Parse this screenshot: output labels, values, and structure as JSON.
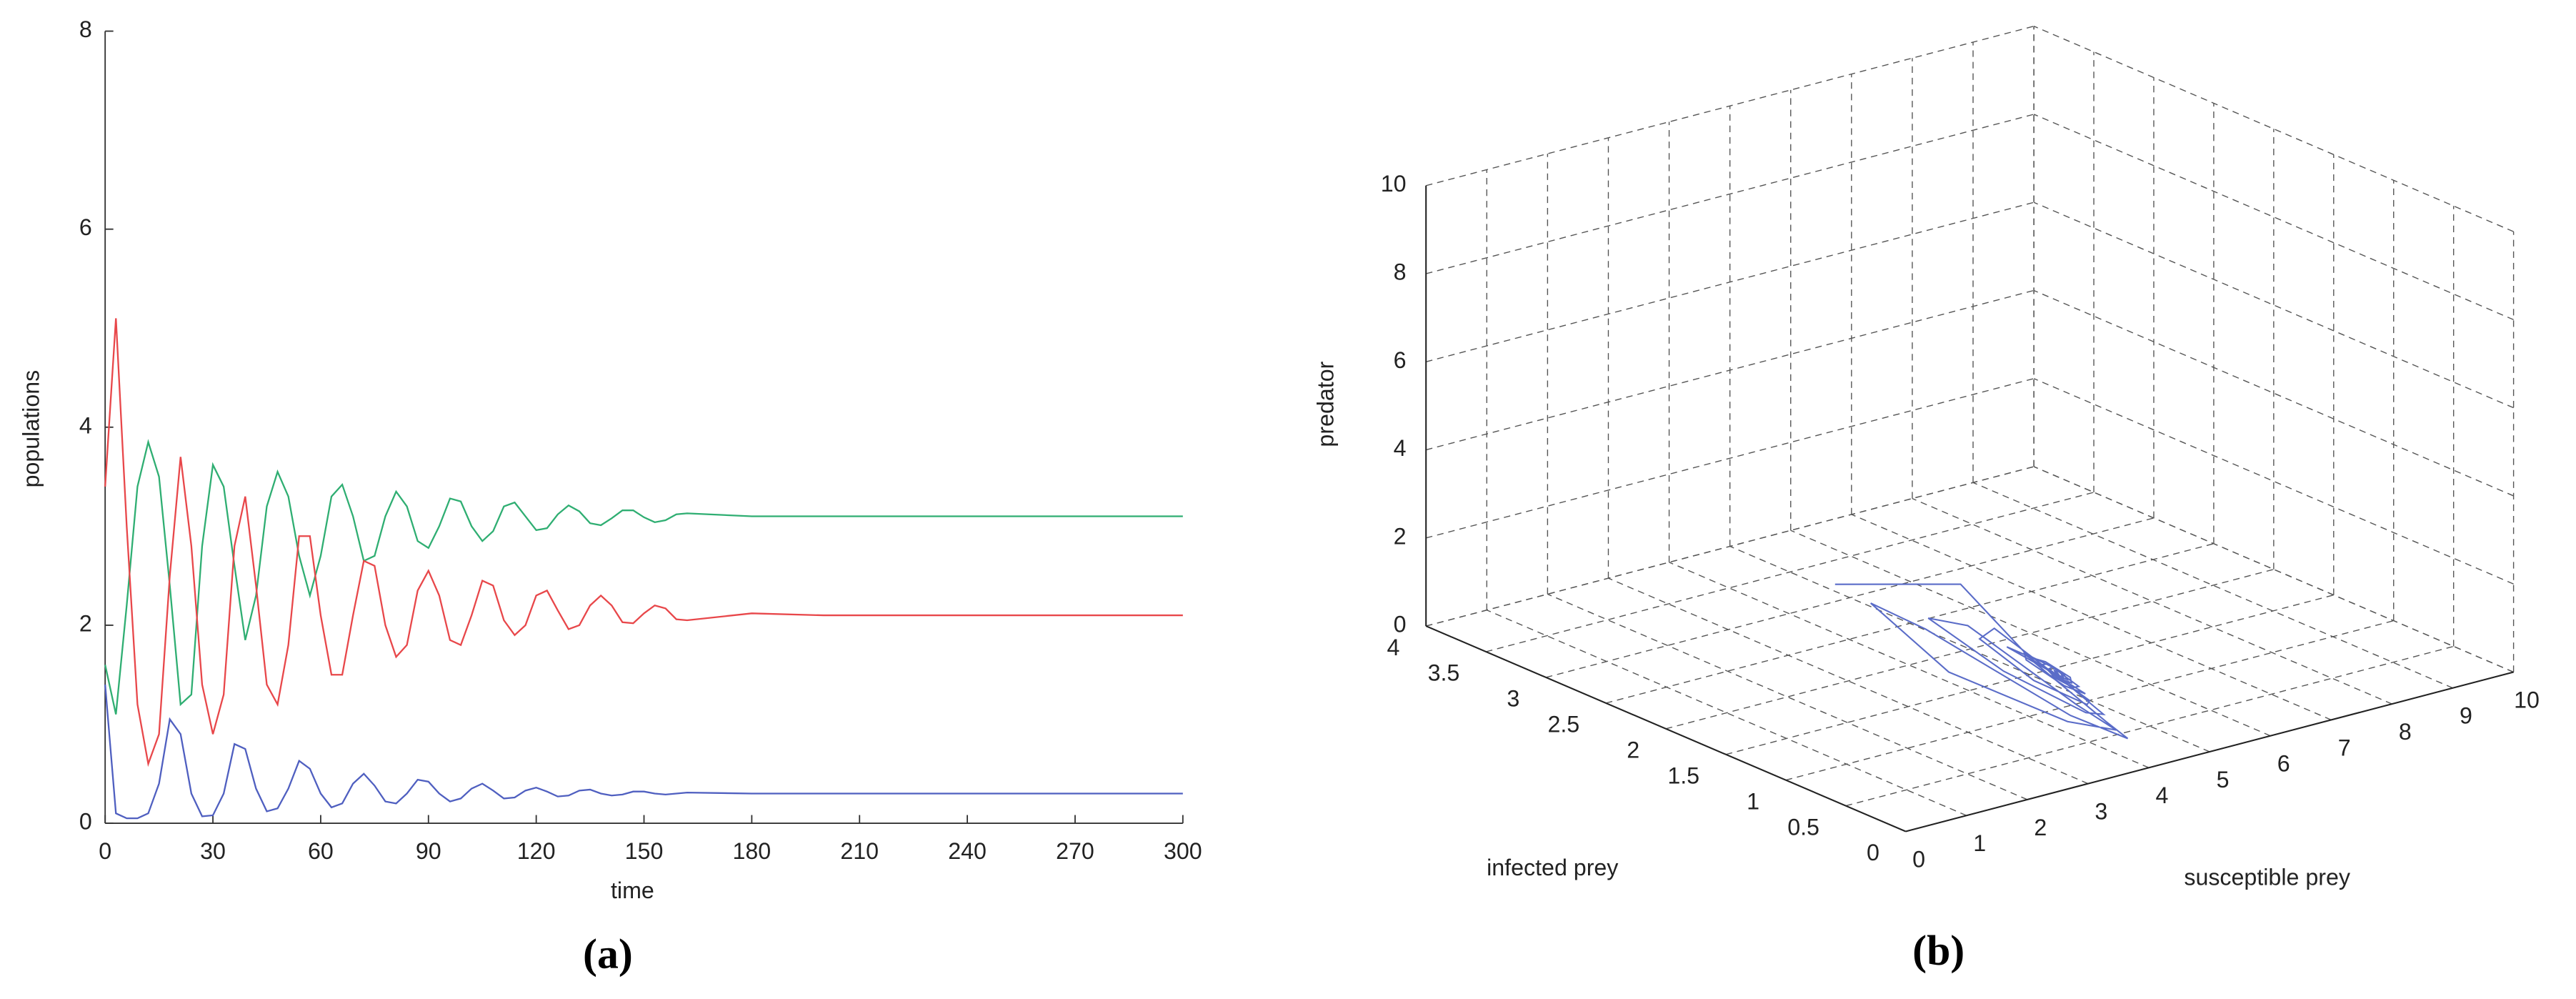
{
  "chart_data": [
    {
      "type": "line",
      "xlabel": "time",
      "ylabel": "populations",
      "caption": "(a)",
      "x": [
        0,
        3,
        6,
        9,
        12,
        15,
        18,
        21,
        24,
        27,
        30,
        33,
        36,
        39,
        42,
        45,
        48,
        51,
        54,
        57,
        60,
        63,
        66,
        69,
        72,
        75,
        78,
        81,
        84,
        87,
        90,
        93,
        96,
        99,
        102,
        105,
        108,
        111,
        114,
        117,
        120,
        123,
        126,
        129,
        132,
        135,
        138,
        141,
        144,
        147,
        150,
        153,
        156,
        159,
        162,
        180,
        200,
        220,
        240,
        260,
        280,
        300
      ],
      "xlim": [
        0,
        300
      ],
      "xticks": [
        0,
        30,
        60,
        90,
        120,
        150,
        180,
        210,
        240,
        270,
        300
      ],
      "ylim": [
        0,
        8
      ],
      "yticks": [
        0,
        2,
        4,
        6,
        8
      ],
      "series": [
        {
          "color": "#2fae72",
          "values": [
            1.6,
            1.1,
            2.2,
            3.4,
            3.85,
            3.5,
            2.4,
            1.2,
            1.3,
            2.8,
            3.62,
            3.4,
            2.6,
            1.85,
            2.3,
            3.2,
            3.55,
            3.3,
            2.7,
            2.3,
            2.7,
            3.3,
            3.42,
            3.1,
            2.65,
            2.7,
            3.1,
            3.35,
            3.2,
            2.85,
            2.78,
            3.0,
            3.28,
            3.25,
            3.0,
            2.85,
            2.95,
            3.2,
            3.24,
            3.1,
            2.96,
            2.98,
            3.12,
            3.21,
            3.15,
            3.03,
            3.01,
            3.08,
            3.16,
            3.16,
            3.09,
            3.04,
            3.06,
            3.12,
            3.13,
            3.1,
            3.1,
            3.1,
            3.1,
            3.1,
            3.1,
            3.1
          ]
        },
        {
          "color": "#e8474a",
          "values": [
            3.4,
            5.1,
            3.0,
            1.2,
            0.6,
            0.9,
            2.5,
            3.7,
            2.8,
            1.4,
            0.9,
            1.3,
            2.8,
            3.3,
            2.4,
            1.4,
            1.2,
            1.8,
            2.9,
            2.9,
            2.1,
            1.5,
            1.5,
            2.1,
            2.65,
            2.6,
            2.0,
            1.68,
            1.8,
            2.35,
            2.55,
            2.3,
            1.85,
            1.8,
            2.1,
            2.45,
            2.4,
            2.05,
            1.9,
            2.0,
            2.3,
            2.35,
            2.15,
            1.96,
            2.0,
            2.2,
            2.3,
            2.2,
            2.03,
            2.02,
            2.12,
            2.2,
            2.17,
            2.06,
            2.05,
            2.12,
            2.1,
            2.1,
            2.1,
            2.1,
            2.1,
            2.1
          ]
        },
        {
          "color": "#4f5fc0",
          "values": [
            1.4,
            0.1,
            0.05,
            0.05,
            0.1,
            0.4,
            1.05,
            0.9,
            0.3,
            0.07,
            0.08,
            0.3,
            0.8,
            0.75,
            0.35,
            0.12,
            0.15,
            0.35,
            0.63,
            0.55,
            0.3,
            0.16,
            0.2,
            0.4,
            0.5,
            0.38,
            0.22,
            0.2,
            0.3,
            0.44,
            0.42,
            0.3,
            0.22,
            0.25,
            0.35,
            0.4,
            0.33,
            0.25,
            0.26,
            0.33,
            0.36,
            0.32,
            0.27,
            0.28,
            0.33,
            0.34,
            0.3,
            0.28,
            0.29,
            0.32,
            0.32,
            0.3,
            0.29,
            0.3,
            0.31,
            0.3,
            0.3,
            0.3,
            0.3,
            0.3,
            0.3,
            0.3
          ]
        }
      ]
    },
    {
      "type": "line3d",
      "xlabel": "susceptible prey",
      "ylabel": "infected prey",
      "zlabel": "predator",
      "caption": "(b)",
      "grid": true,
      "xlim": [
        0,
        10
      ],
      "xticks": [
        0,
        1,
        2,
        3,
        4,
        5,
        6,
        7,
        8,
        9,
        10
      ],
      "ylim": [
        0,
        4
      ],
      "yticks": [
        0,
        0.5,
        1,
        1.5,
        2,
        2.5,
        3,
        3.5,
        4
      ],
      "zlim": [
        0,
        10
      ],
      "zticks": [
        0,
        2,
        4,
        6,
        8,
        10
      ],
      "series": [
        {
          "color": "#5a6cc8",
          "x": [
            1.6,
            1.1,
            2.2,
            3.4,
            3.85,
            3.5,
            2.4,
            1.2,
            1.3,
            2.8,
            3.62,
            3.4,
            2.6,
            1.85,
            2.3,
            3.2,
            3.55,
            3.3,
            2.7,
            2.3,
            2.7,
            3.3,
            3.42,
            3.1,
            2.65,
            2.7,
            3.1,
            3.35,
            3.2,
            2.85,
            2.78,
            3.0,
            3.28,
            3.25,
            3.0,
            2.85,
            2.95,
            3.2,
            3.24,
            3.1,
            2.96,
            2.98,
            3.12,
            3.21,
            3.15,
            3.03,
            3.01,
            3.08,
            3.16,
            3.16,
            3.09,
            3.04,
            3.06,
            3.12,
            3.13
          ],
          "y": [
            1.4,
            0.1,
            0.05,
            0.05,
            0.1,
            0.4,
            1.05,
            0.9,
            0.3,
            0.07,
            0.08,
            0.3,
            0.8,
            0.75,
            0.35,
            0.12,
            0.15,
            0.35,
            0.63,
            0.55,
            0.3,
            0.16,
            0.2,
            0.4,
            0.5,
            0.38,
            0.22,
            0.2,
            0.3,
            0.44,
            0.42,
            0.3,
            0.22,
            0.25,
            0.35,
            0.4,
            0.33,
            0.25,
            0.26,
            0.33,
            0.36,
            0.32,
            0.27,
            0.28,
            0.33,
            0.34,
            0.3,
            0.28,
            0.29,
            0.32,
            0.32,
            0.3,
            0.29,
            0.3,
            0.31
          ],
          "z": [
            3.4,
            5.1,
            3.0,
            1.2,
            0.6,
            0.9,
            2.5,
            3.7,
            2.8,
            1.4,
            0.9,
            1.3,
            2.8,
            3.3,
            2.4,
            1.4,
            1.2,
            1.8,
            2.9,
            2.9,
            2.1,
            1.5,
            1.5,
            2.1,
            2.65,
            2.6,
            2.0,
            1.68,
            1.8,
            2.35,
            2.55,
            2.3,
            1.85,
            1.8,
            2.1,
            2.45,
            2.4,
            2.05,
            1.9,
            2.0,
            2.3,
            2.35,
            2.15,
            1.96,
            2.0,
            2.2,
            2.3,
            2.2,
            2.03,
            2.02,
            2.12,
            2.2,
            2.17,
            2.06,
            2.05
          ]
        }
      ]
    }
  ]
}
